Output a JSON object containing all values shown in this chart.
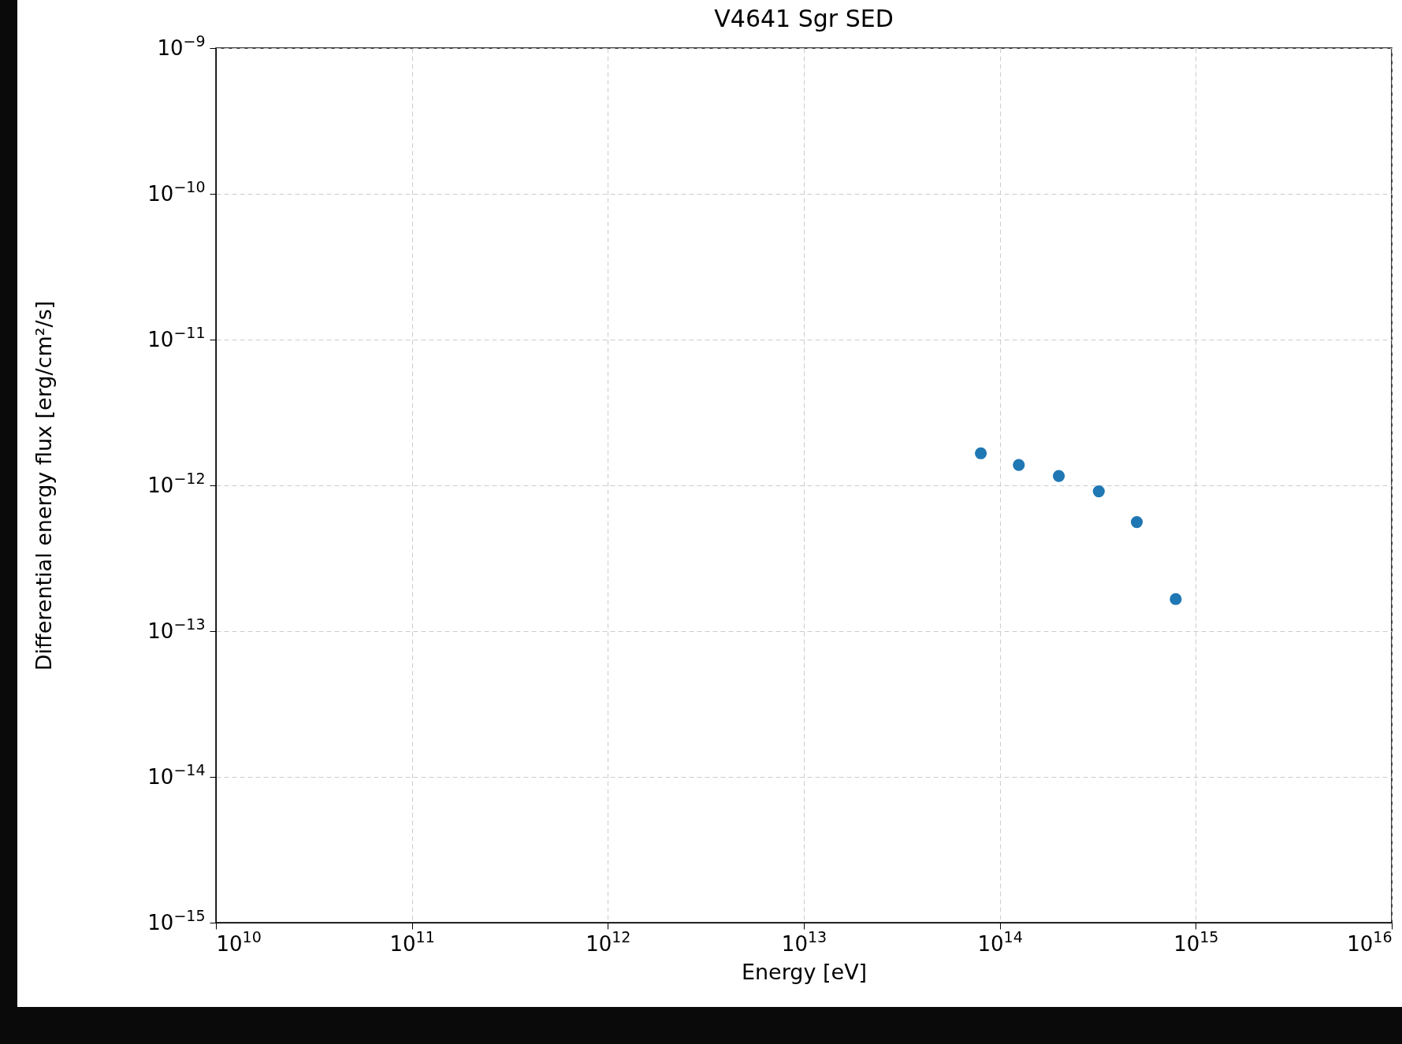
{
  "chart_data": {
    "type": "scatter",
    "title": "V4641 Sgr SED",
    "xlabel": "Energy [eV]",
    "ylabel": "Differential energy flux [erg/cm²/s]",
    "x": [
      80000000000000.0,
      125000000000000.0,
      200000000000000.0,
      320000000000000.0,
      500000000000000.0,
      790000000000000.0
    ],
    "series": [
      {
        "color": "#1f77b4",
        "values": [
          1.66e-12,
          1.38e-12,
          1.16e-12,
          9.1e-13,
          5.6e-13,
          1.66e-13
        ]
      }
    ],
    "log": "xy",
    "grid": true,
    "marker": "circle",
    "legend": false,
    "xlim": [
      10000000000.0,
      1e+16
    ],
    "ylim": [
      1e-15,
      1e-09
    ],
    "xticks": [
      {
        "value": 10000000000.0,
        "label": "10$^{10}$"
      },
      {
        "value": 100000000000.0,
        "label": "10$^{11}$"
      },
      {
        "value": 1000000000000.0,
        "label": "10$^{12}$"
      },
      {
        "value": 10000000000000.0,
        "label": "10$^{13}$"
      },
      {
        "value": 100000000000000.0,
        "label": "10$^{14}$"
      },
      {
        "value": 1000000000000000.0,
        "label": "10$^{15}$"
      },
      {
        "value": 1e+16,
        "label": "10$^{16}$"
      }
    ],
    "yticks": [
      {
        "value": 1e-15,
        "label": "10$^{−15}$"
      },
      {
        "value": 1e-14,
        "label": "10$^{−14}$"
      },
      {
        "value": 1e-13,
        "label": "10$^{−13}$"
      },
      {
        "value": 1e-12,
        "label": "10$^{−12}$"
      },
      {
        "value": 1e-11,
        "label": "10$^{−11}$"
      },
      {
        "value": 1e-10,
        "label": "10$^{−10}$"
      },
      {
        "value": 1e-09,
        "label": "10$^{−9}$"
      }
    ]
  }
}
